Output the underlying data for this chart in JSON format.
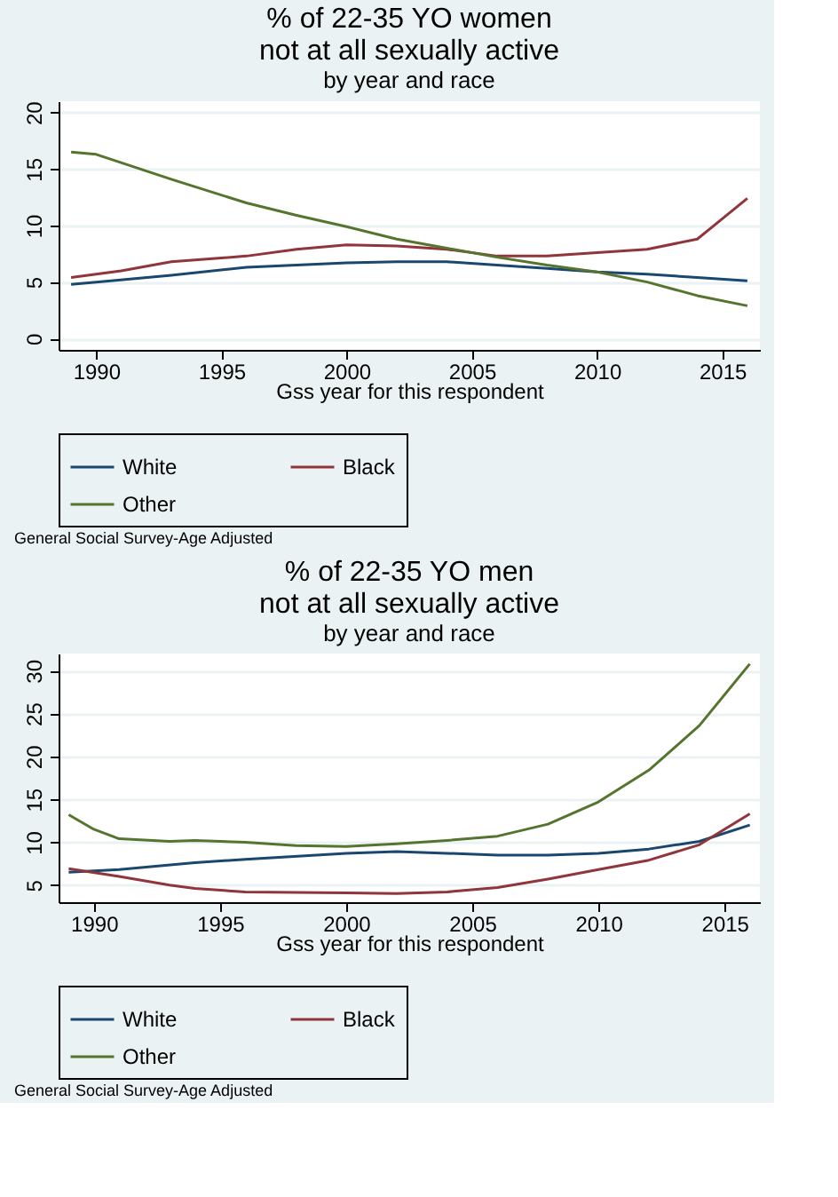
{
  "chart_data": [
    {
      "type": "line",
      "title": "% of 22-35 YO women\nnot at all sexually active",
      "subtitle": "by year and race",
      "xlabel": "Gss year for this respondent",
      "xlim": [
        1988.5,
        2016.5
      ],
      "xticks": [
        1990,
        1995,
        2000,
        2005,
        2010,
        2015
      ],
      "ylim": [
        -1,
        21
      ],
      "yticks": [
        0,
        5,
        10,
        15,
        20
      ],
      "grid": "y",
      "legend": "bottom",
      "annotations": [
        "General Social Survey-Age Adjusted"
      ],
      "series": [
        {
          "name": "White",
          "color": "#1a476f",
          "x": [
            1989,
            1990,
            1993,
            1996,
            2000,
            2002,
            2004,
            2006,
            2008,
            2010,
            2012,
            2014,
            2016
          ],
          "values": [
            4.8,
            5.0,
            5.6,
            6.3,
            6.7,
            6.8,
            6.8,
            6.5,
            6.2,
            5.9,
            5.7,
            5.4,
            5.1
          ]
        },
        {
          "name": "Black",
          "color": "#90353b",
          "x": [
            1989,
            1991,
            1993,
            1996,
            1998,
            2000,
            2002,
            2004,
            2006,
            2008,
            2010,
            2012,
            2014,
            2016
          ],
          "values": [
            5.4,
            6.0,
            6.8,
            7.3,
            7.9,
            8.3,
            8.2,
            7.9,
            7.3,
            7.3,
            7.6,
            7.9,
            8.8,
            12.4
          ]
        },
        {
          "name": "Other",
          "color": "#55752f",
          "x": [
            1989,
            1990,
            1993,
            1996,
            1998,
            2000,
            2002,
            2004,
            2006,
            2008,
            2010,
            2012,
            2014,
            2016
          ],
          "values": [
            16.5,
            16.3,
            14.1,
            12.0,
            10.9,
            9.9,
            8.8,
            8.0,
            7.2,
            6.5,
            5.9,
            5.0,
            3.8,
            2.9
          ]
        }
      ]
    },
    {
      "type": "line",
      "title": "% of 22-35 YO men\nnot at all sexually active",
      "subtitle": "by year and race",
      "xlabel": "Gss year for this respondent",
      "xlim": [
        1988.6,
        2016.4
      ],
      "xticks": [
        1990,
        1995,
        2000,
        2005,
        2010,
        2015
      ],
      "ylim": [
        3,
        32
      ],
      "yticks": [
        5,
        10,
        15,
        20,
        25,
        30
      ],
      "grid": "y",
      "legend": "bottom",
      "annotations": [
        "General Social Survey-Age Adjusted"
      ],
      "series": [
        {
          "name": "White",
          "color": "#1a476f",
          "x": [
            1989,
            1991,
            1994,
            1996,
            2000,
            2002,
            2004,
            2006,
            2008,
            2010,
            2012,
            2014,
            2016
          ],
          "values": [
            6.5,
            6.8,
            7.6,
            8.0,
            8.7,
            8.9,
            8.7,
            8.5,
            8.5,
            8.7,
            9.2,
            10.1,
            12.0
          ]
        },
        {
          "name": "Black",
          "color": "#90353b",
          "x": [
            1989,
            1991,
            1993,
            1994,
            1996,
            2000,
            2002,
            2004,
            2006,
            2008,
            2010,
            2012,
            2014,
            2016
          ],
          "values": [
            6.9,
            6.0,
            5.0,
            4.6,
            4.2,
            4.1,
            4.0,
            4.2,
            4.7,
            5.7,
            6.8,
            7.9,
            9.7,
            13.3
          ]
        },
        {
          "name": "Other",
          "color": "#55752f",
          "x": [
            1989,
            1990,
            1991,
            1993,
            1994,
            1996,
            1998,
            2000,
            2002,
            2004,
            2006,
            2008,
            2010,
            2012,
            2014,
            2016
          ],
          "values": [
            13.2,
            11.5,
            10.4,
            10.1,
            10.2,
            10.0,
            9.6,
            9.5,
            9.8,
            10.2,
            10.7,
            12.1,
            14.7,
            18.4,
            23.6,
            30.8
          ]
        }
      ]
    }
  ]
}
